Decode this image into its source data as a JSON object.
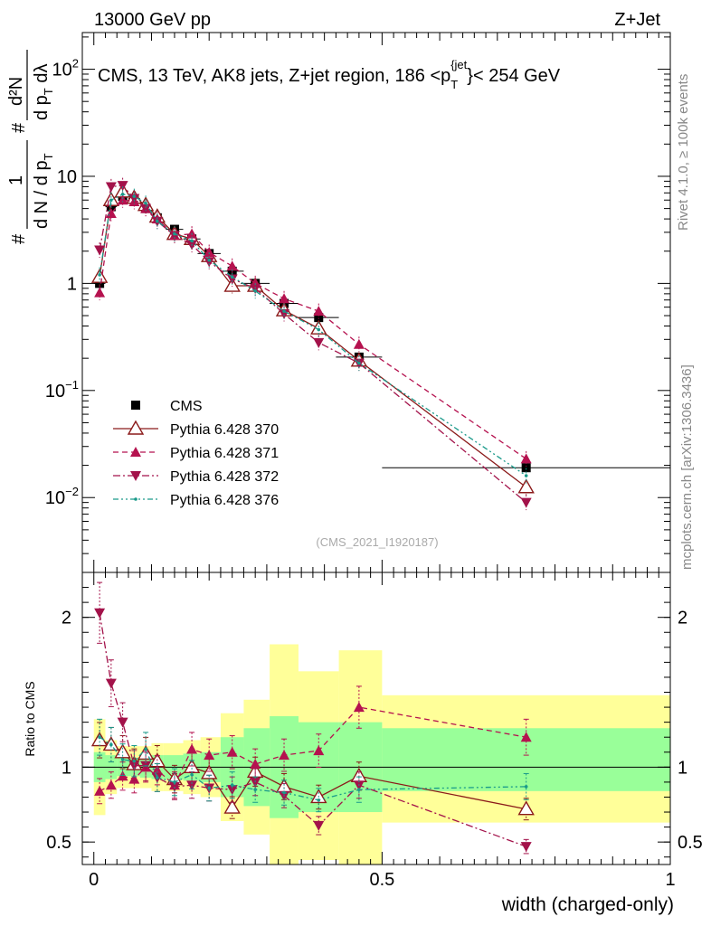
{
  "header": {
    "left": "13000 GeV pp",
    "right": "Z+Jet"
  },
  "side_labels": {
    "rivet": "Rivet 4.1.0, ≥ 100k events",
    "mcplots": "mcplots.cern.ch [arXiv:1306.3436]"
  },
  "colors": {
    "cms": "#000000",
    "py370": "#8b1a1a",
    "py371": "#b5124f",
    "py372": "#a3124a",
    "py376": "#1a9a8a",
    "band_yellow": "#ffff99",
    "band_green": "#99ff99"
  },
  "chart_data": [
    {
      "type": "line",
      "panel": "main",
      "title_parts": {
        "main": "CMS, 13 TeV, AK8 jets, Z+jet region, 186 <p",
        "sub": "T",
        "sup": "{jet",
        "close": "}< 254 GeV"
      },
      "ylabel_parts": {
        "hash": "#",
        "one": "1",
        "denom": "d N / d p",
        "denom_sub": "T",
        "numer": "d²N",
        "denom2": "d p",
        "denom2_sub": "T",
        "denom2_end": " dλ"
      },
      "watermark": "(CMS_2021_I1920187)",
      "ylim": [
        0.002,
        220
      ],
      "yscale": "log",
      "yticks": [
        {
          "v": 0.01,
          "base": "10",
          "exp": "−2"
        },
        {
          "v": 0.1,
          "base": "10",
          "exp": "−1"
        },
        {
          "v": 1,
          "base": "1",
          "exp": ""
        },
        {
          "v": 10,
          "base": "10",
          "exp": ""
        },
        {
          "v": 100,
          "base": "10",
          "exp": "2"
        }
      ],
      "x": [
        0.01,
        0.03,
        0.05,
        0.07,
        0.09,
        0.11,
        0.14,
        0.17,
        0.2,
        0.24,
        0.28,
        0.33,
        0.39,
        0.46,
        0.75
      ],
      "xerr": [
        0.01,
        0.01,
        0.01,
        0.01,
        0.01,
        0.01,
        0.015,
        0.015,
        0.02,
        0.02,
        0.025,
        0.025,
        0.035,
        0.04,
        0.25
      ],
      "series": [
        {
          "name": "CMS",
          "style": "cms",
          "values": [
            1.0,
            5.2,
            6.5,
            6.2,
            5.0,
            4.1,
            3.2,
            2.6,
            1.9,
            1.3,
            1.0,
            0.65,
            0.48,
            0.205,
            0.019
          ]
        },
        {
          "name": "Pythia 6.428 370",
          "style": "py370",
          "values": [
            1.15,
            6.0,
            7.2,
            6.3,
            5.4,
            4.2,
            2.9,
            2.6,
            1.8,
            0.95,
            0.95,
            0.56,
            0.38,
            0.19,
            0.0125
          ]
        },
        {
          "name": "Pythia 6.428 371",
          "style": "py371",
          "values": [
            0.82,
            4.5,
            6.0,
            5.8,
            5.0,
            4.0,
            2.8,
            2.9,
            1.95,
            1.45,
            1.0,
            0.72,
            0.55,
            0.27,
            0.023
          ]
        },
        {
          "name": "Pythia 6.428 372",
          "style": "py372",
          "values": [
            2.05,
            8.0,
            8.2,
            6.2,
            5.0,
            3.8,
            2.8,
            2.3,
            1.6,
            1.1,
            0.9,
            0.52,
            0.28,
            0.18,
            0.009
          ]
        },
        {
          "name": "Pythia 6.428 376",
          "style": "py376",
          "values": [
            1.2,
            6.0,
            6.8,
            6.5,
            5.6,
            3.8,
            2.9,
            2.5,
            1.65,
            1.15,
            0.85,
            0.55,
            0.37,
            0.18,
            0.016
          ]
        }
      ]
    },
    {
      "type": "line",
      "panel": "ratio",
      "ylabel": "Ratio to CMS",
      "xlabel": "width (charged-only)",
      "ylim": [
        0.35,
        2.3
      ],
      "yticks": [
        0.5,
        1,
        2
      ],
      "xlim": [
        -0.02,
        1.0
      ],
      "xticks": [
        {
          "v": 0,
          "label": "0"
        },
        {
          "v": 0.5,
          "label": "0.5"
        },
        {
          "v": 1,
          "label": "1"
        }
      ],
      "band_edges": [
        0.0,
        0.02,
        0.04,
        0.06,
        0.08,
        0.1,
        0.12,
        0.155,
        0.185,
        0.22,
        0.26,
        0.305,
        0.355,
        0.425,
        0.5,
        1.0
      ],
      "band_green": [
        [
          0.9,
          1.1
        ],
        [
          0.92,
          1.08
        ],
        [
          0.94,
          1.06
        ],
        [
          0.94,
          1.06
        ],
        [
          0.93,
          1.07
        ],
        [
          0.92,
          1.08
        ],
        [
          0.92,
          1.08
        ],
        [
          0.91,
          1.09
        ],
        [
          0.9,
          1.1
        ],
        [
          0.8,
          1.2
        ],
        [
          0.74,
          1.26
        ],
        [
          0.66,
          1.34
        ],
        [
          0.7,
          1.3
        ],
        [
          0.7,
          1.3
        ],
        [
          0.84,
          1.26
        ]
      ],
      "band_yellow": [
        [
          0.68,
          1.32
        ],
        [
          0.82,
          1.18
        ],
        [
          0.86,
          1.14
        ],
        [
          0.86,
          1.14
        ],
        [
          0.86,
          1.14
        ],
        [
          0.84,
          1.16
        ],
        [
          0.84,
          1.16
        ],
        [
          0.82,
          1.18
        ],
        [
          0.8,
          1.2
        ],
        [
          0.64,
          1.36
        ],
        [
          0.55,
          1.45
        ],
        [
          0.3,
          1.82
        ],
        [
          0.38,
          1.64
        ],
        [
          0.3,
          1.78
        ],
        [
          0.63,
          1.48
        ]
      ],
      "series": [
        {
          "name": "Pythia 6.428 370",
          "style": "py370",
          "values": [
            1.18,
            1.15,
            1.1,
            1.02,
            1.09,
            1.04,
            0.92,
            1.0,
            0.96,
            0.73,
            0.97,
            0.87,
            0.8,
            0.94,
            0.72
          ]
        },
        {
          "name": "Pythia 6.428 371",
          "style": "py371",
          "values": [
            0.84,
            0.88,
            0.94,
            0.92,
            1.0,
            0.98,
            0.88,
            1.12,
            1.08,
            1.1,
            1.02,
            1.08,
            1.11,
            1.4,
            1.2
          ]
        },
        {
          "name": "Pythia 6.428 372",
          "style": "py372",
          "values": [
            2.03,
            1.56,
            1.3,
            1.01,
            1.01,
            0.93,
            0.87,
            0.88,
            0.86,
            0.85,
            0.9,
            0.81,
            0.61,
            0.88,
            0.47
          ]
        },
        {
          "name": "Pythia 6.428 376",
          "style": "py376",
          "values": [
            1.2,
            1.15,
            1.05,
            1.04,
            1.12,
            0.93,
            0.9,
            0.95,
            0.86,
            0.88,
            0.85,
            0.83,
            0.78,
            0.85,
            0.87
          ]
        }
      ]
    }
  ]
}
